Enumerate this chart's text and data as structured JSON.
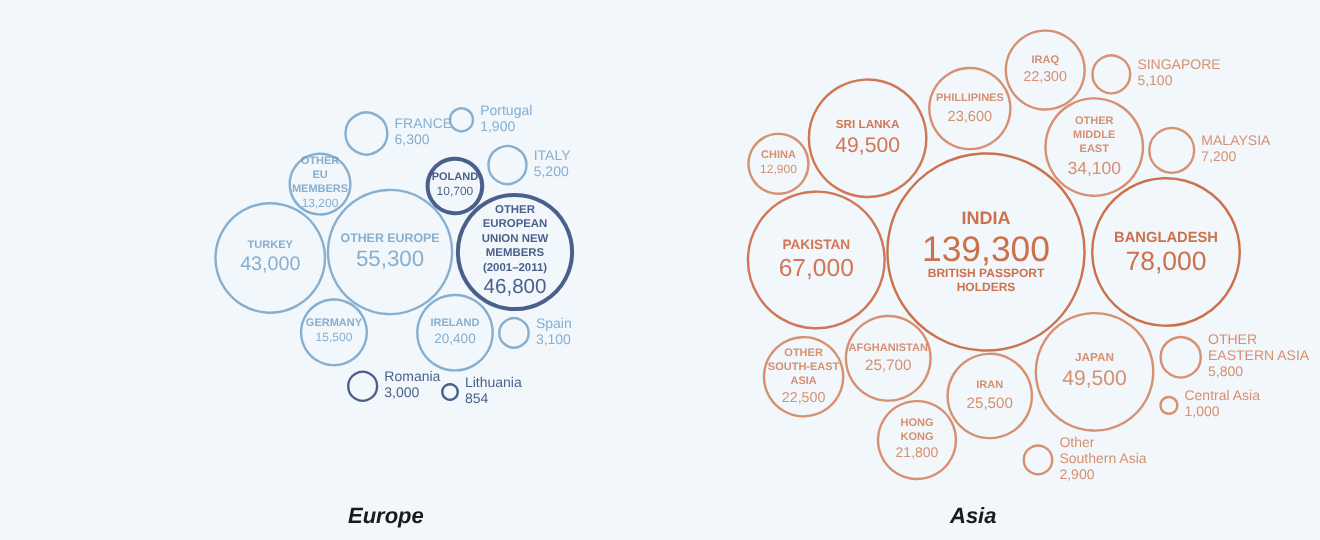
{
  "chart_data": {
    "type": "other",
    "categories": [
      "IRELAND",
      "OTHER EU MEMBERS",
      "Lithuania",
      "OTHER EUROPE",
      "GERMANY",
      "POLAND",
      "FRANCE",
      "ITALY",
      "Portugal",
      "Spain",
      "OTHER EUROPEAN UNION NEW MEMBERS (2001–2011)",
      "Romania",
      "TURKEY",
      "Central Asia",
      "AFGHANISTAN",
      "PAKISTAN",
      "JAPAN",
      "IRAQ",
      "IRAN",
      "CHINA",
      "OTHER EASTERN ASIA",
      "PHILLIPINES",
      "Other Southern Asia",
      "OTHER MIDDLE EAST",
      "INDIA",
      "HONG KONG",
      "OTHER SOUTH-EAST ASIA",
      "BANGLADESH",
      "SRI LANKA",
      "MALAYSIA",
      "SINGAPORE"
    ],
    "colors": [
      "#6a9cc4",
      "#6a9cc4",
      "#1f3a6e",
      "#6a9cc4",
      "#6a9cc4",
      "#1f3a6e",
      "#6a9cc4",
      "#6a9cc4",
      "#6a9cc4",
      "#6a9cc4",
      "#1f3a6e",
      "#1f3a6e",
      "#6a9cc4",
      "#d0754c",
      "#d0754c",
      "#c8562b",
      "#d0754c",
      "#d0754c",
      "#d0754c",
      "#d0754c",
      "#d0754c",
      "#d0754c",
      "#d0754c",
      "#d0754c",
      "#c0501f",
      "#d0754c",
      "#d0754c",
      "#c0501f",
      "#c8562b",
      "#d0754c",
      "#d0754c"
    ],
    "series": [
      {
        "name": "Europe",
        "color": "#1a1a1a",
        "values": [
          20400,
          13200,
          854,
          55300,
          15500,
          10700,
          6300,
          5200,
          1900,
          3100,
          46800,
          3000,
          43000,
          null,
          null,
          null,
          null,
          null,
          null,
          null,
          null,
          null,
          null,
          null,
          null,
          null,
          null,
          null,
          null,
          null,
          null
        ],
        "value_labels": [
          "20,400",
          "13,200",
          "854",
          "55,300",
          "15,500",
          "10,700",
          "6,300",
          "5,200",
          "1,900",
          "3,100",
          "46,800",
          "3,000",
          "43,000",
          null,
          null,
          null,
          null,
          null,
          null,
          null,
          null,
          null,
          null,
          null,
          null,
          null,
          null,
          null,
          null,
          null,
          null
        ]
      },
      {
        "name": "Asia",
        "color": "#1a1a1a",
        "values": [
          null,
          null,
          null,
          null,
          null,
          null,
          null,
          null,
          null,
          null,
          null,
          null,
          null,
          1000,
          25700,
          67000,
          49500,
          22300,
          25500,
          12900,
          5800,
          23600,
          2900,
          34100,
          139300,
          21800,
          22500,
          78000,
          49500,
          7200,
          5100
        ],
        "value_labels": [
          null,
          null,
          null,
          null,
          null,
          null,
          null,
          null,
          null,
          null,
          null,
          null,
          null,
          "1,000",
          "25,700",
          "67,000",
          "49,500",
          "22,300",
          "25,500",
          "12,900",
          "5,800",
          "23,600",
          "2,900",
          "34,100",
          "139,300",
          "21,800",
          "22,500",
          "78,000",
          "49,500",
          "7,200",
          "5,100"
        ]
      }
    ],
    "annotations": [
      {
        "text": "BRITISH PASSPORT HOLDERS",
        "x": "INDIA"
      }
    ]
  }
}
